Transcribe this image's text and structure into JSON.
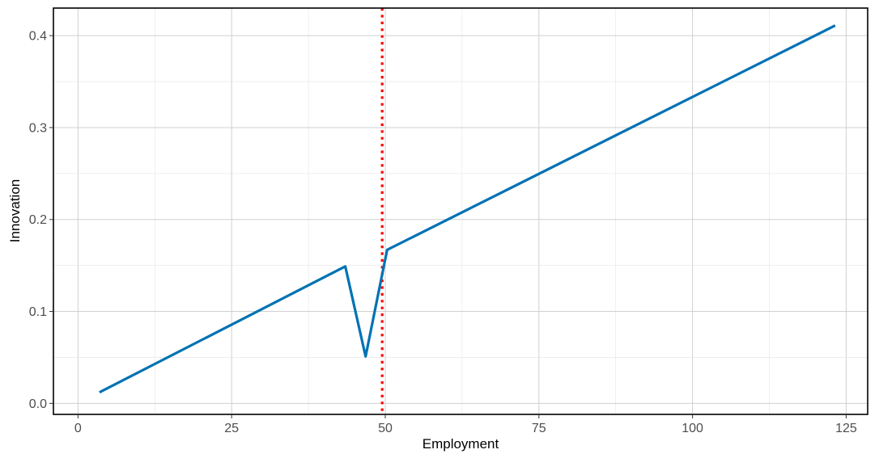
{
  "chart_data": {
    "type": "line",
    "xlabel": "Employment",
    "ylabel": "Innovation",
    "xlim": [
      -4,
      128.5
    ],
    "ylim": [
      -0.012,
      0.43
    ],
    "x_ticks": [
      0,
      25,
      50,
      75,
      100,
      125
    ],
    "x_tick_labels": [
      "0",
      "25",
      "50",
      "75",
      "100",
      "125"
    ],
    "y_ticks": [
      0.0,
      0.1,
      0.2,
      0.3,
      0.4
    ],
    "y_tick_labels": [
      "0.0",
      "0.1",
      "0.2",
      "0.3",
      "0.4"
    ],
    "grid": true,
    "series": [
      {
        "color": "#0072b2",
        "points": [
          {
            "x": 3.5,
            "y": 0.012
          },
          {
            "x": 43.5,
            "y": 0.149
          },
          {
            "x": 46.8,
            "y": 0.051
          },
          {
            "x": 50.3,
            "y": 0.167
          },
          {
            "x": 123.2,
            "y": 0.411
          }
        ]
      }
    ],
    "reference_lines": [
      {
        "orientation": "vertical",
        "x": 49.5,
        "color": "#ff0000",
        "style": "dotted"
      }
    ]
  }
}
